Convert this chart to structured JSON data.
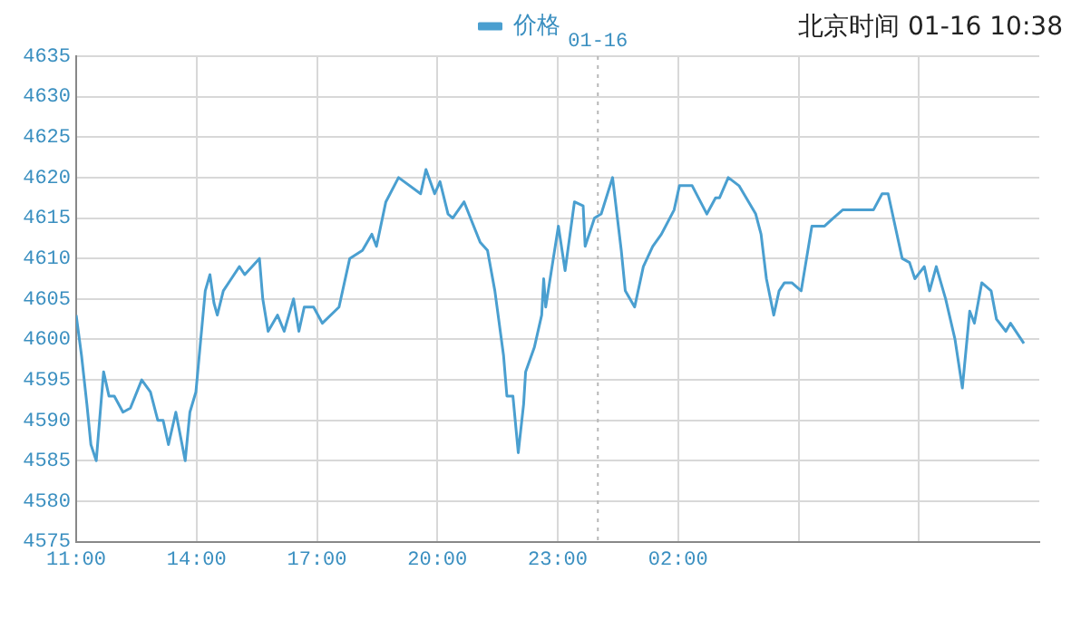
{
  "chart_data": {
    "type": "line",
    "annotations": [
      "北京时间 01-16 10:38"
    ],
    "legend": "top",
    "grid": true,
    "marker": "none",
    "line_style": "solid",
    "xlim": [
      "--01-15T11:00",
      "--01-16T11:00"
    ],
    "ylim": [
      4575,
      4635
    ],
    "xticks": [
      {
        "value": "--01-15T11:00",
        "label": "11:00"
      },
      {
        "value": "--01-15T14:00",
        "label": "14:00"
      },
      {
        "value": "--01-15T17:00",
        "label": "17:00"
      },
      {
        "value": "--01-15T20:00",
        "label": "20:00"
      },
      {
        "value": "--01-15T23:00",
        "label": "23:00"
      },
      {
        "value": "--01-16T02:00",
        "label": "02:00"
      },
      {
        "value": "--01-16T05:00",
        "label": null
      },
      {
        "value": "--01-16T08:00",
        "label": null
      }
    ],
    "yticks": [
      4575,
      4580,
      4585,
      4590,
      4595,
      4600,
      4605,
      4610,
      4615,
      4620,
      4625,
      4630,
      4635
    ],
    "ref_lines": [
      {
        "axis": "x",
        "value": "--01-16T00:00",
        "label": "01-16",
        "color": "#b8b8b8",
        "line_style": "dotted"
      }
    ],
    "series": [
      {
        "name": "价格",
        "color": "#4a9fd0",
        "x": [
          "--01-15T11:00",
          "--01-15T11:08",
          "--01-15T11:16",
          "--01-15T11:22",
          "--01-15T11:30",
          "--01-15T11:41",
          "--01-15T11:49",
          "--01-15T11:57",
          "--01-15T12:10",
          "--01-15T12:21",
          "--01-15T12:38",
          "--01-15T12:51",
          "--01-15T13:02",
          "--01-15T13:10",
          "--01-15T13:18",
          "--01-15T13:29",
          "--01-15T13:43",
          "--01-15T13:50",
          "--01-15T13:59",
          "--01-15T14:04",
          "--01-15T14:13",
          "--01-15T14:20",
          "--01-15T14:26",
          "--01-15T14:31",
          "--01-15T14:40",
          "--01-15T15:04",
          "--01-15T15:12",
          "--01-15T15:34",
          "--01-15T15:39",
          "--01-15T15:47",
          "--01-15T16:01",
          "--01-15T16:11",
          "--01-15T16:25",
          "--01-15T16:33",
          "--01-15T16:41",
          "--01-15T16:55",
          "--01-15T17:08",
          "--01-15T17:33",
          "--01-15T17:49",
          "--01-15T18:08",
          "--01-15T18:22",
          "--01-15T18:29",
          "--01-15T18:43",
          "--01-15T19:02",
          "--01-15T19:35",
          "--01-15T19:43",
          "--01-15T19:56",
          "--01-15T20:04",
          "--01-15T20:16",
          "--01-15T20:23",
          "--01-15T20:40",
          "--01-15T21:04",
          "--01-15T21:15",
          "--01-15T21:26",
          "--01-15T21:39",
          "--01-15T21:44",
          "--01-15T21:53",
          "--01-15T22:01",
          "--01-15T22:09",
          "--01-15T22:12",
          "--01-15T22:25",
          "--01-15T22:36",
          "--01-15T22:39",
          "--01-15T22:42",
          "--01-15T23:01",
          "--01-15T23:11",
          "--01-15T23:25",
          "--01-15T23:38",
          "--01-15T23:41",
          "--01-15T23:55",
          "--01-16T00:05",
          "--01-16T00:22",
          "--01-16T00:35",
          "--01-16T00:41",
          "--01-16T00:55",
          "--01-16T01:08",
          "--01-16T01:22",
          "--01-16T01:35",
          "--01-16T01:54",
          "--01-16T02:02",
          "--01-16T02:21",
          "--01-16T02:43",
          "--01-16T02:56",
          "--01-16T03:02",
          "--01-16T03:15",
          "--01-16T03:31",
          "--01-16T03:56",
          "--01-16T04:04",
          "--01-16T04:12",
          "--01-16T04:23",
          "--01-16T04:31",
          "--01-16T04:39",
          "--01-16T04:50",
          "--01-16T05:04",
          "--01-16T05:20",
          "--01-16T05:31",
          "--01-16T05:39",
          "--01-16T05:52",
          "--01-16T06:06",
          "--01-16T06:52",
          "--01-16T07:05",
          "--01-16T07:14",
          "--01-16T07:35",
          "--01-16T07:46",
          "--01-16T07:54",
          "--01-16T08:08",
          "--01-16T08:16",
          "--01-16T08:26",
          "--01-16T08:40",
          "--01-16T08:54",
          "--01-16T09:05",
          "--01-16T09:16",
          "--01-16T09:23",
          "--01-16T09:34",
          "--01-16T09:48",
          "--01-16T09:56",
          "--01-16T10:10",
          "--01-16T10:17",
          "--01-16T10:37"
        ],
        "values": [
          4603,
          4598,
          4592,
          4587,
          4585,
          4596,
          4593,
          4593,
          4591,
          4591.5,
          4595,
          4593.5,
          4590,
          4590,
          4587,
          4591,
          4585,
          4591,
          4593.5,
          4598,
          4606,
          4608,
          4604.5,
          4603,
          4606,
          4609,
          4608,
          4610,
          4605,
          4601,
          4603,
          4601,
          4605,
          4601,
          4604,
          4604,
          4602,
          4604,
          4610,
          4611,
          4613,
          4611.5,
          4617,
          4620,
          4618,
          4621,
          4618,
          4619.5,
          4615.5,
          4615,
          4617,
          4612,
          4611,
          4606,
          4598,
          4593,
          4593,
          4586,
          4592,
          4596,
          4599,
          4603,
          4607.5,
          4604,
          4614,
          4608.5,
          4617,
          4616.5,
          4611.5,
          4615,
          4615.5,
          4620,
          4611,
          4606,
          4604,
          4609,
          4611.5,
          4613,
          4616,
          4619,
          4619,
          4615.5,
          4617.5,
          4617.5,
          4620,
          4619,
          4615.5,
          4613,
          4607.5,
          4603,
          4606,
          4607,
          4607,
          4606,
          4614,
          4614,
          4614,
          4615,
          4616,
          4616,
          4618,
          4618,
          4610,
          4609.5,
          4607.5,
          4609,
          4606,
          4609,
          4605,
          4600,
          4594,
          4603.5,
          4602,
          4607,
          4606,
          4602.5,
          4601,
          4602,
          4599.5
        ]
      }
    ]
  }
}
